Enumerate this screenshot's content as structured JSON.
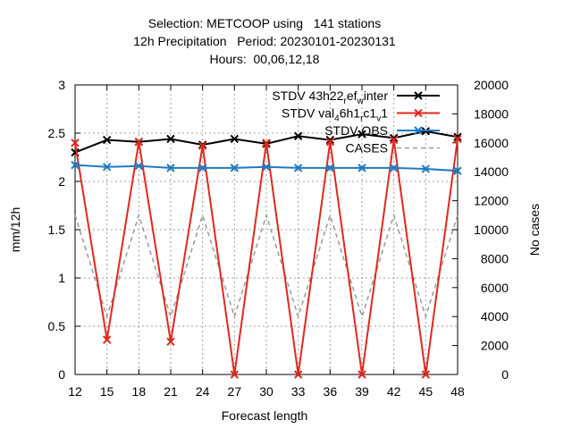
{
  "chart_data": {
    "type": "line",
    "title": {
      "line1": "Selection: METCOOP using   141 stations",
      "line2": "12h Precipitation   Period: 20230101-20230131",
      "line3": "Hours:  00,06,12,18"
    },
    "xlabel": "Forecast length",
    "ylabel": "mm/12h",
    "y2label": "No cases",
    "x": [
      12,
      15,
      18,
      21,
      24,
      27,
      30,
      33,
      36,
      39,
      42,
      45,
      48
    ],
    "xlim": [
      12,
      48
    ],
    "ylim": [
      0,
      3
    ],
    "y2lim": [
      0,
      20000
    ],
    "x_ticks": [
      "12",
      "15",
      "18",
      "21",
      "24",
      "27",
      "30",
      "33",
      "36",
      "39",
      "42",
      "45",
      "48"
    ],
    "y_ticks": [
      "0",
      "0.5",
      "1",
      "1.5",
      "2",
      "2.5",
      "3"
    ],
    "y2_ticks": [
      "0",
      "2000",
      "4000",
      "6000",
      "8000",
      "10000",
      "12000",
      "14000",
      "16000",
      "18000",
      "20000"
    ],
    "grid": true,
    "legend_position": "top-right",
    "series": [
      {
        "name": "STDV 43h22_ref_winter",
        "legend_label": {
          "main": "STDV 43h22",
          "sub1": "r",
          "mid1": "ef",
          "sub2": "w",
          "mid2": "inter"
        },
        "color": "#000000",
        "marker": "x",
        "axis": "y",
        "values": [
          2.3,
          2.43,
          2.41,
          2.44,
          2.38,
          2.44,
          2.39,
          2.47,
          2.43,
          2.49,
          2.45,
          2.52,
          2.46
        ]
      },
      {
        "name": "STDV val_46h1_rc1_v1",
        "legend_label": {
          "main": "STDV val",
          "sub1": "4",
          "mid1": "6h1",
          "sub2": "r",
          "mid2": "c1",
          "sub3": "v",
          "tail": "1"
        },
        "color": "#e0281e",
        "marker": "x",
        "axis": "y",
        "values": [
          2.4,
          0.36,
          2.41,
          0.34,
          2.37,
          0.0,
          2.4,
          0.0,
          2.41,
          0.0,
          2.43,
          0.0,
          2.44
        ]
      },
      {
        "name": "STDV OBS",
        "legend_label": {
          "main": "STDV OBS"
        },
        "color": "#1f7bc0",
        "marker": "x",
        "axis": "y",
        "values": [
          2.17,
          2.15,
          2.16,
          2.14,
          2.14,
          2.14,
          2.15,
          2.14,
          2.14,
          2.14,
          2.14,
          2.13,
          2.11
        ]
      },
      {
        "name": "CASES",
        "legend_label": {
          "main": "CASES"
        },
        "color": "#999999",
        "dashed": true,
        "axis": "y2",
        "values": [
          11000,
          4000,
          11000,
          4000,
          11000,
          4000,
          11000,
          4000,
          11000,
          4000,
          11000,
          4000,
          11000
        ]
      }
    ]
  }
}
